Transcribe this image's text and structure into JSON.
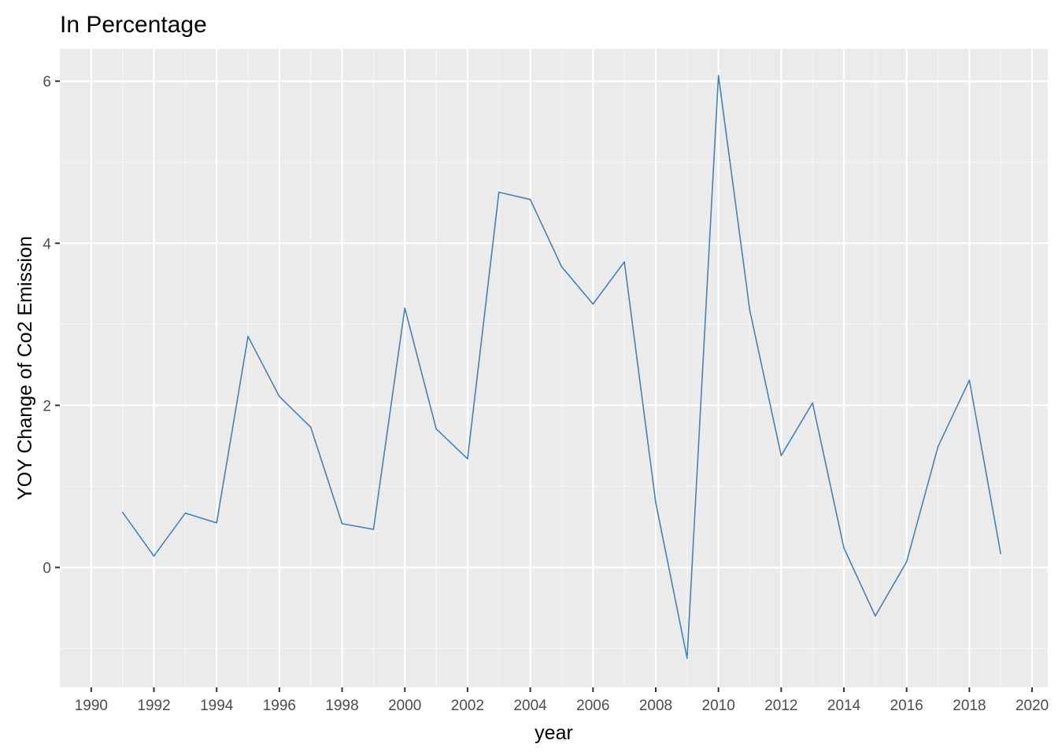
{
  "chart_data": {
    "type": "line",
    "title": "In Percentage",
    "xlabel": "year",
    "ylabel": "YOY Change of Co2 Emission",
    "xlim": [
      1989,
      2020.5
    ],
    "ylim": [
      -1.48,
      6.4
    ],
    "x_ticks": [
      1990,
      1992,
      1994,
      1996,
      1998,
      2000,
      2002,
      2004,
      2006,
      2008,
      2010,
      2012,
      2014,
      2016,
      2018,
      2020
    ],
    "x_tick_labels": [
      "1990",
      "1992",
      "1994",
      "1996",
      "1998",
      "2000",
      "2002",
      "2004",
      "2006",
      "2008",
      "2010",
      "2012",
      "2014",
      "2016",
      "2018",
      "2020"
    ],
    "y_ticks": [
      0,
      2,
      4,
      6
    ],
    "y_tick_labels": [
      "0",
      "2",
      "4",
      "6"
    ],
    "grid": true,
    "series": [
      {
        "color": "#4682b4",
        "x": [
          1991,
          1992,
          1993,
          1994,
          1995,
          1996,
          1997,
          1998,
          1999,
          2000,
          2001,
          2002,
          2003,
          2004,
          2005,
          2006,
          2007,
          2008,
          2009,
          2010,
          2011,
          2012,
          2013,
          2014,
          2015,
          2016,
          2017,
          2018,
          2019
        ],
        "values": [
          0.68,
          0.14,
          0.67,
          0.55,
          2.85,
          2.11,
          1.73,
          0.54,
          0.47,
          3.2,
          1.71,
          1.34,
          4.63,
          4.54,
          3.71,
          3.25,
          3.77,
          0.8,
          -1.12,
          6.07,
          3.17,
          1.38,
          2.03,
          0.24,
          -0.6,
          0.07,
          1.49,
          2.31,
          0.17
        ]
      }
    ]
  },
  "colors": {
    "panel_background": "#ebebeb",
    "grid_major": "#ffffff",
    "grid_minor": "#f5f5f5",
    "tick_text": "#4d4d4d",
    "tick_mark": "#333333",
    "line": "#4682b4"
  }
}
